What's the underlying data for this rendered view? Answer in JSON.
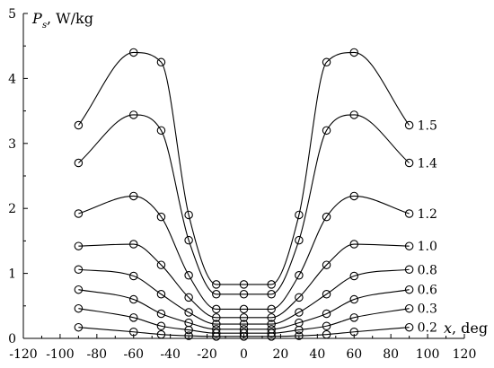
{
  "chart_data": {
    "type": "line",
    "ylabel_main": "P",
    "ylabel_sub": "s",
    "ylabel_unit": ", W/kg",
    "xlabel_var": "x",
    "xlabel_unit": ", deg",
    "xlim": [
      -120,
      120
    ],
    "ylim": [
      0,
      5
    ],
    "x_ticks": [
      -120,
      -100,
      -80,
      -60,
      -40,
      -20,
      0,
      20,
      40,
      60,
      80,
      100,
      120
    ],
    "y_ticks": [
      0,
      1,
      2,
      3,
      4,
      5
    ],
    "grid": false,
    "x": [
      -90,
      -60,
      -45,
      -30,
      -15,
      0,
      15,
      30,
      45,
      60,
      90
    ],
    "series": [
      {
        "name": "1.5",
        "values": [
          3.28,
          4.4,
          4.25,
          1.9,
          0.83,
          0.83,
          0.83,
          1.9,
          4.25,
          4.4,
          3.28
        ]
      },
      {
        "name": "1.4",
        "values": [
          2.7,
          3.44,
          3.2,
          1.51,
          0.68,
          0.68,
          0.68,
          1.51,
          3.2,
          3.44,
          2.7
        ]
      },
      {
        "name": "1.2",
        "values": [
          1.92,
          2.19,
          1.87,
          0.97,
          0.45,
          0.45,
          0.45,
          0.97,
          1.87,
          2.19,
          1.92
        ]
      },
      {
        "name": "1.0",
        "values": [
          1.42,
          1.45,
          1.13,
          0.63,
          0.32,
          0.32,
          0.32,
          0.63,
          1.13,
          1.45,
          1.42
        ]
      },
      {
        "name": "0.8",
        "values": [
          1.06,
          0.96,
          0.68,
          0.4,
          0.22,
          0.22,
          0.22,
          0.4,
          0.68,
          0.96,
          1.06
        ]
      },
      {
        "name": "0.6",
        "values": [
          0.75,
          0.6,
          0.38,
          0.24,
          0.14,
          0.14,
          0.14,
          0.24,
          0.38,
          0.6,
          0.75
        ]
      },
      {
        "name": "0.3",
        "values": [
          0.46,
          0.32,
          0.19,
          0.13,
          0.08,
          0.08,
          0.08,
          0.13,
          0.19,
          0.32,
          0.46
        ]
      },
      {
        "name": "0.2",
        "values": [
          0.17,
          0.1,
          0.06,
          0.04,
          0.03,
          0.03,
          0.03,
          0.04,
          0.06,
          0.1,
          0.17
        ]
      }
    ]
  }
}
